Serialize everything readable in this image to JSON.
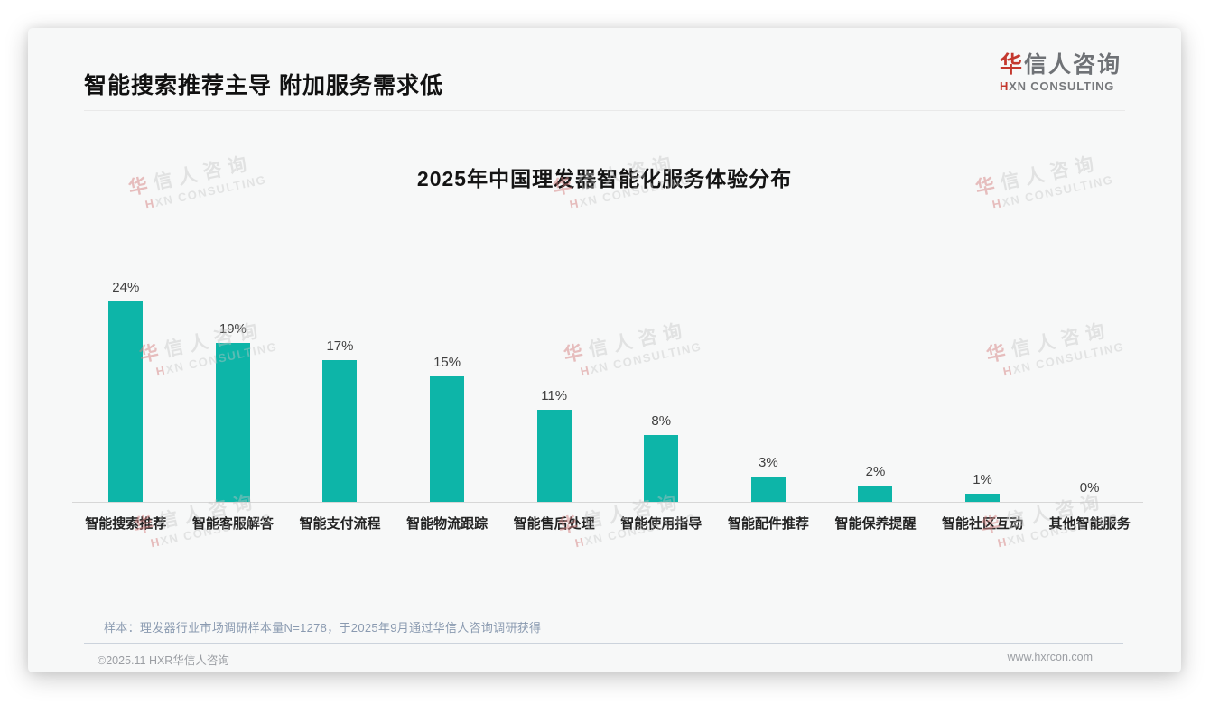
{
  "header": {
    "title": "智能搜索推荐主导 附加服务需求低"
  },
  "logo": {
    "zh_accent": "华",
    "zh_rest": "信人咨询",
    "en_accent": "H",
    "en_rest": "XN CONSULTING"
  },
  "watermark": {
    "zh_accent": "华",
    "zh_rest": "信人咨询",
    "en_accent": "H",
    "en_rest": "XN CONSULTING"
  },
  "chart_data": {
    "type": "bar",
    "title": "2025年中国理发器智能化服务体验分布",
    "categories": [
      "智能搜索推荐",
      "智能客服解答",
      "智能支付流程",
      "智能物流跟踪",
      "智能售后处理",
      "智能使用指导",
      "智能配件推荐",
      "智能保养提醒",
      "智能社区互动",
      "其他智能服务"
    ],
    "values": [
      24,
      19,
      17,
      15,
      11,
      8,
      3,
      2,
      1,
      0
    ],
    "unit": "%",
    "bar_color": "#0db5a8",
    "ylim": [
      0,
      26
    ],
    "grid": false,
    "legend": "none"
  },
  "footer": {
    "note": "样本：理发器行业市场调研样本量N=1278，于2025年9月通过华信人咨询调研获得",
    "copyright": "©2025.11 HXR华信人咨询",
    "website": "www.hxrcon.com"
  }
}
